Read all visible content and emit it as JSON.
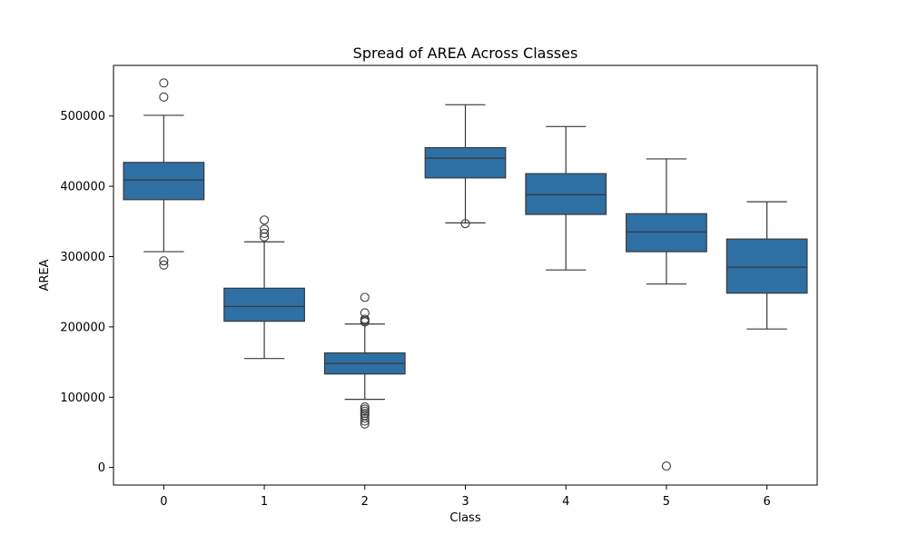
{
  "chart_data": {
    "type": "boxplot",
    "title": "Spread of AREA Across Classes",
    "xlabel": "Class",
    "ylabel": "AREA",
    "ylim": [
      -25000,
      572000
    ],
    "y_ticks": [
      0,
      100000,
      200000,
      300000,
      400000,
      500000
    ],
    "y_tick_labels": [
      "0",
      "100000",
      "200000",
      "300000",
      "400000",
      "500000"
    ],
    "categories": [
      "0",
      "1",
      "2",
      "3",
      "4",
      "5",
      "6"
    ],
    "grid": false,
    "box_color": "#2e6fa4",
    "edge_color": "#3a3a3a",
    "boxes": [
      {
        "category": "0",
        "whisker_low": 307000,
        "q1": 381000,
        "median": 409000,
        "q3": 434000,
        "whisker_high": 501000,
        "outliers": [
          547000,
          527000,
          294000,
          288000
        ]
      },
      {
        "category": "1",
        "whisker_low": 155000,
        "q1": 208000,
        "median": 229000,
        "q3": 255000,
        "whisker_high": 321000,
        "outliers": [
          352000,
          339000,
          333000,
          328000
        ]
      },
      {
        "category": "2",
        "whisker_low": 97000,
        "q1": 133000,
        "median": 148000,
        "q3": 163000,
        "whisker_high": 204000,
        "outliers": [
          242000,
          220000,
          211000,
          209000,
          207000,
          86000,
          83000,
          80000,
          77000,
          74000,
          70000,
          66000,
          62000
        ]
      },
      {
        "category": "3",
        "whisker_low": 348000,
        "q1": 412000,
        "median": 440000,
        "q3": 455000,
        "whisker_high": 516000,
        "outliers": [
          347000
        ]
      },
      {
        "category": "4",
        "whisker_low": 281000,
        "q1": 360000,
        "median": 388000,
        "q3": 418000,
        "whisker_high": 485000,
        "outliers": []
      },
      {
        "category": "5",
        "whisker_low": 261000,
        "q1": 307000,
        "median": 335000,
        "q3": 361000,
        "whisker_high": 439000,
        "outliers": [
          2000
        ]
      },
      {
        "category": "6",
        "whisker_low": 197000,
        "q1": 248000,
        "median": 285000,
        "q3": 325000,
        "whisker_high": 378000,
        "outliers": []
      }
    ]
  }
}
